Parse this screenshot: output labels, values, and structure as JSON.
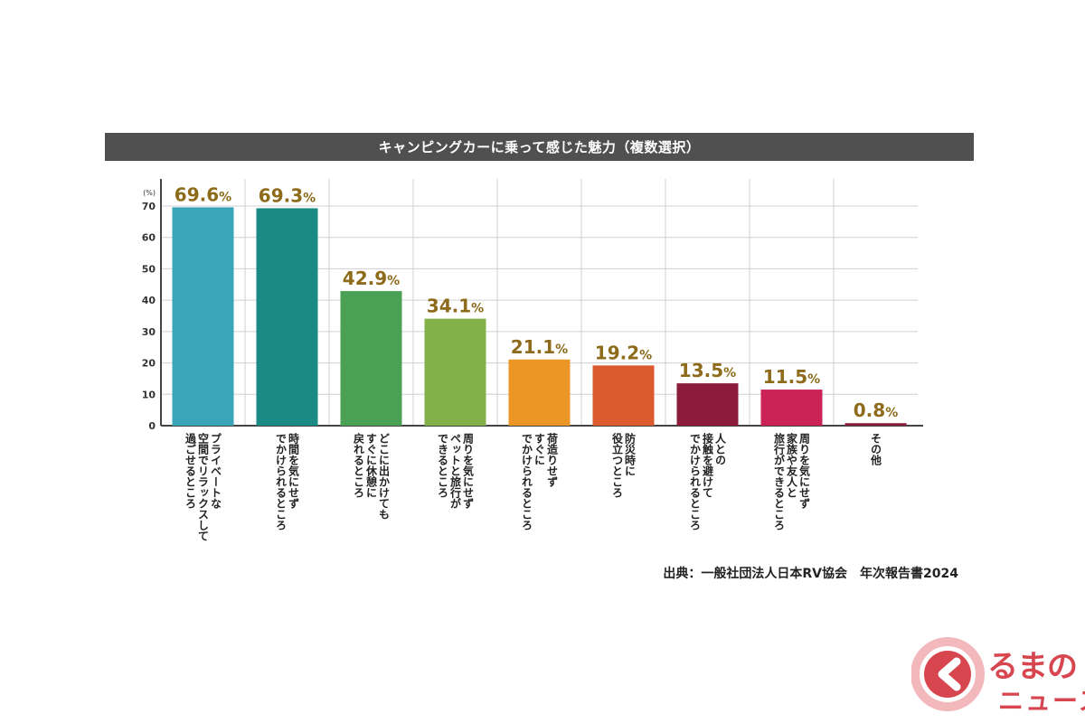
{
  "chart_data": {
    "type": "bar",
    "title": "キャンピングカーに乗って感じた魅力（複数選択）",
    "y_unit": "(%)",
    "ylim": [
      0,
      70
    ],
    "yticks": [
      0,
      10,
      20,
      30,
      40,
      50,
      60,
      70
    ],
    "grid": true,
    "categories": [
      "プライベートな空間でリラックスして過ごせるところ",
      "時間を気にせずでかけられるところ",
      "どこに出かけてもすぐに休憩に戻れるところ",
      "周りを気にせずペットと旅行ができるところ",
      "荷造りせずすぐにでかけられるところ",
      "防災時に役立つところ",
      "人との接触を避けてでかけられるところ",
      "周りを気にせず家族や友人と旅行ができるところ",
      "その他"
    ],
    "category_lines": [
      [
        "プライベートな",
        "空間でリラックスして",
        "過ごせるところ"
      ],
      [
        "時間を気にせず",
        "でかけられるところ"
      ],
      [
        "どこに出かけても",
        "すぐに休憩に",
        "戻れるところ"
      ],
      [
        "周りを気にせず",
        "ペットと旅行が",
        "できるところ"
      ],
      [
        "荷造りせず",
        "すぐに",
        "でかけられるところ"
      ],
      [
        "防災時に",
        "役立つところ"
      ],
      [
        "人との",
        "接触を避けて",
        "でかけられるところ"
      ],
      [
        "周りを気にせず",
        "家族や友人と",
        "旅行ができるところ"
      ],
      [
        "その他"
      ]
    ],
    "values": [
      69.6,
      69.3,
      42.9,
      34.1,
      21.1,
      19.2,
      13.5,
      11.5,
      0.8
    ],
    "value_labels": [
      "69.6",
      "69.3",
      "42.9",
      "34.1",
      "21.1",
      "19.2",
      "13.5",
      "11.5",
      "0.8"
    ],
    "value_suffix": "%",
    "colors": [
      "#3aa5b8",
      "#1a8a84",
      "#4ba153",
      "#84b04a",
      "#eb9625",
      "#dc5a2d",
      "#8b1c3b",
      "#cc2357",
      "#8b1c3b"
    ],
    "label_color": "#8d6b1a"
  },
  "source": "出典：一般社団法人日本RV協会　年次報告書2024",
  "logo": {
    "line1": "るまの",
    "line2": "ニュース",
    "color": "#d7454f"
  }
}
